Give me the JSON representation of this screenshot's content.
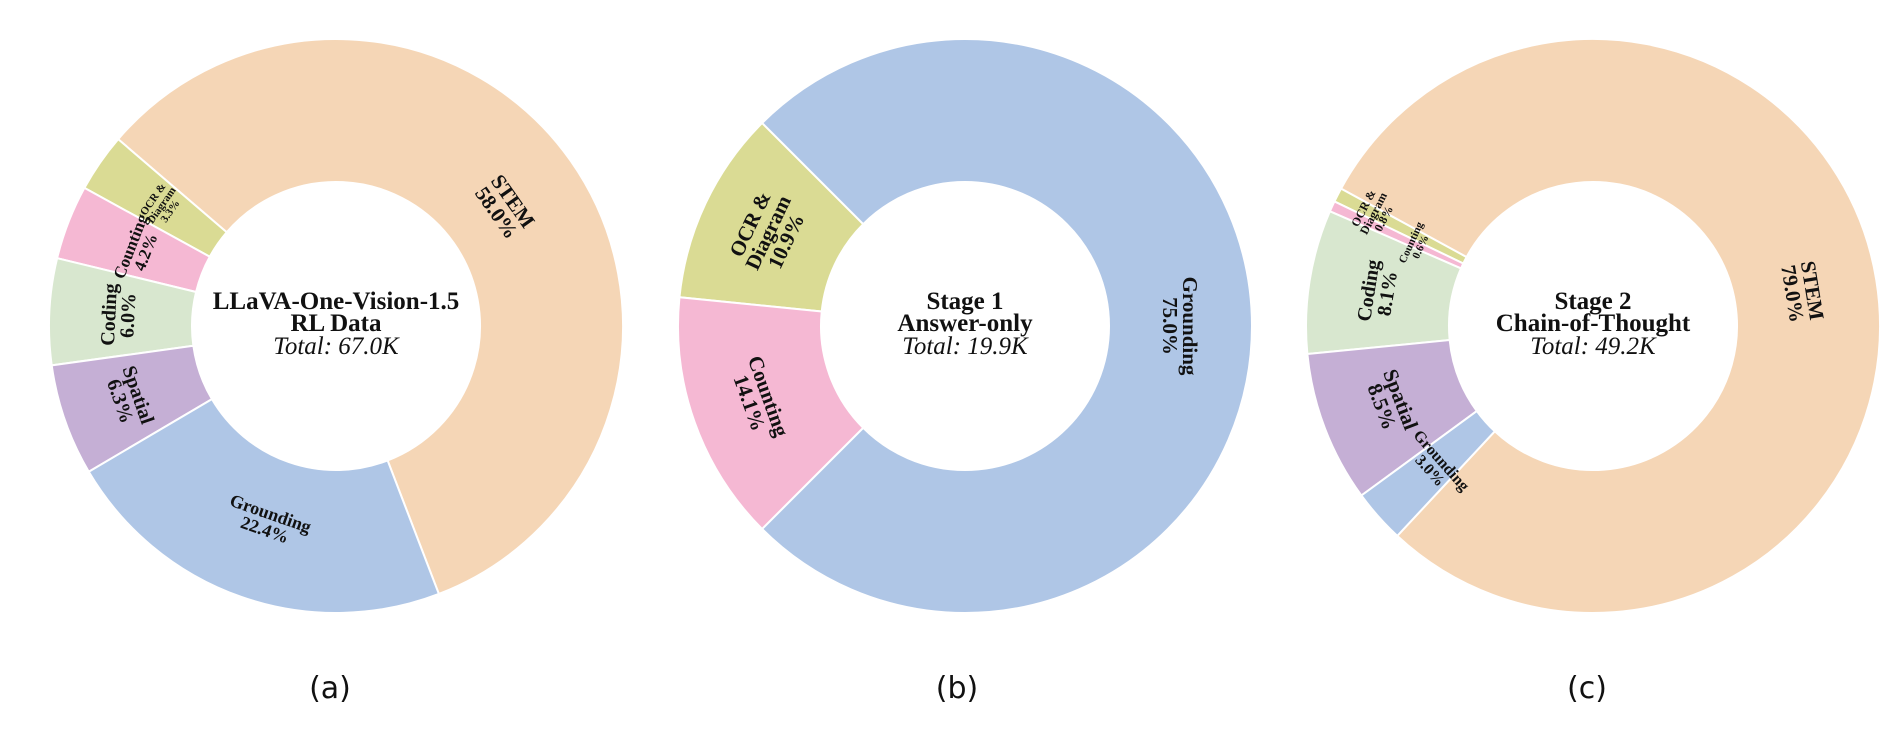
{
  "figure": {
    "colors": {
      "STEM": "#F5D6B6",
      "Grounding": "#AFC6E6",
      "Spatial": "#C5AFD5",
      "Coding": "#D8E7CF",
      "Counting": "#F5B8D3",
      "OCR & Diagram": "#DADB94"
    }
  },
  "chart_data": [
    {
      "type": "pie",
      "variant": "donut",
      "caption": "(a)",
      "title_lines": [
        "LLaVA-One-Vision-1.5",
        "RL Data"
      ],
      "total": "Total: 67.0K",
      "categories": [
        "STEM",
        "OCR & Diagram",
        "Counting",
        "Coding",
        "Spatial",
        "Grounding"
      ],
      "values": [
        58.0,
        3.3,
        4.2,
        6.0,
        6.3,
        22.4
      ],
      "labels": [
        "STEM\n58.0%",
        "OCR &\nDiagram\n3.3%",
        "Counting\n4.2%",
        "Coding\n6.0%",
        "Spatial\n6.3%",
        "Grounding\n22.4%"
      ],
      "start_angle_deg": -69
    },
    {
      "type": "pie",
      "variant": "donut",
      "caption": "(b)",
      "title_lines": [
        "Stage 1",
        "Answer-only"
      ],
      "total": "Total: 19.9K",
      "categories": [
        "Grounding",
        "OCR & Diagram",
        "Counting"
      ],
      "values": [
        75.0,
        10.9,
        14.1
      ],
      "labels": [
        "Grounding\n75.0%",
        "OCR &\nDiagram\n10.9%",
        "Counting\n14.1%"
      ],
      "start_angle_deg": -135
    },
    {
      "type": "pie",
      "variant": "donut",
      "caption": "(c)",
      "title_lines": [
        "Stage 2",
        "Chain-of-Thought"
      ],
      "total": "Total: 49.2K",
      "categories": [
        "STEM",
        "OCR & Diagram",
        "Counting",
        "Coding",
        "Spatial",
        "Grounding"
      ],
      "values": [
        79.0,
        0.8,
        0.6,
        8.1,
        8.5,
        3.0
      ],
      "labels": [
        "STEM\n79.0%",
        "OCR &\nDiagram\n0.8%",
        "Counting\n0.6%",
        "Coding\n8.1%",
        "Spatial\n8.5%",
        "Grounding\n3.0%"
      ],
      "start_angle_deg": -133
    }
  ]
}
